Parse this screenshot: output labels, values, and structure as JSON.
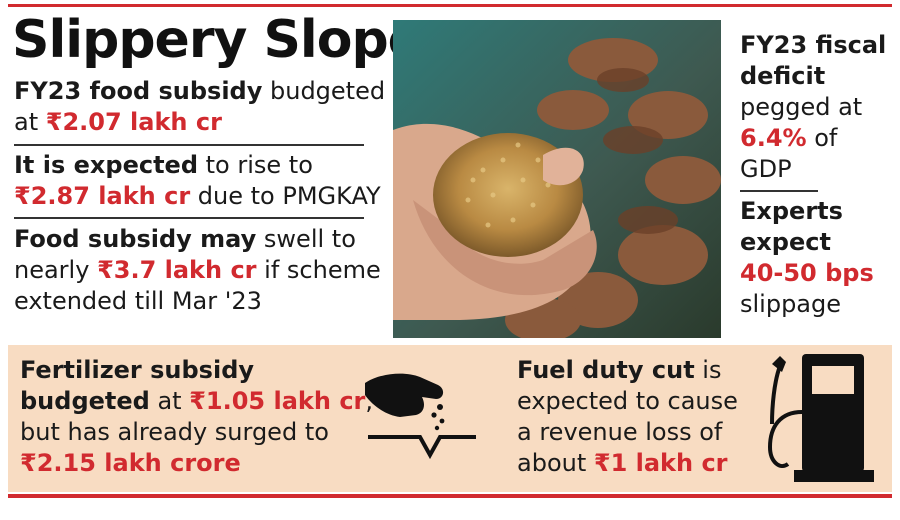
{
  "title": "Slippery Slope",
  "left": {
    "p1": {
      "bold": "FY23 food subsidy",
      "normal": " budgeted",
      "line2a": "at ",
      "value": "₹2.07 lakh cr"
    },
    "p2": {
      "bold": "It is expected",
      "normal": " to rise to",
      "value": "₹2.87 lakh cr",
      "tail": " due to PMGKAY"
    },
    "p3": {
      "bold": "Food subsidy may",
      "normal": " swell to",
      "line2a": "nearly ",
      "value": "₹3.7 lakh cr",
      "line2b": " if scheme",
      "line3": "extended till Mar '23"
    }
  },
  "right": {
    "r1": {
      "line1": "FY23 fiscal",
      "line2": "deficit",
      "line3": "pegged at",
      "value": "6.4%",
      "tail": " of",
      "line5": "GDP"
    },
    "r2": {
      "line1": "Experts",
      "line2": "expect",
      "value": "40-50 bps",
      "line4": "slippage"
    }
  },
  "bottom": {
    "fert": {
      "line1": "Fertilizer subsidy",
      "bold2": "budgeted",
      "normal2": " at ",
      "value1": "₹1.05 lakh cr",
      "comma": ",",
      "line3": "but has already surged to",
      "value2": "₹2.15 lakh crore"
    },
    "fuel": {
      "bold": "Fuel duty cut",
      "normal": " is",
      "line2": "expected to cause",
      "line3": "a revenue loss of",
      "line4a": "about ",
      "value": "₹1 lakh cr"
    }
  },
  "icons": [
    "wheat-hands-photo",
    "fertilizer-hand-icon",
    "fuel-pump-icon"
  ],
  "colors": {
    "accent": "#d12a2f",
    "panel": "#f8dcc2",
    "text": "#1a1a1a"
  }
}
